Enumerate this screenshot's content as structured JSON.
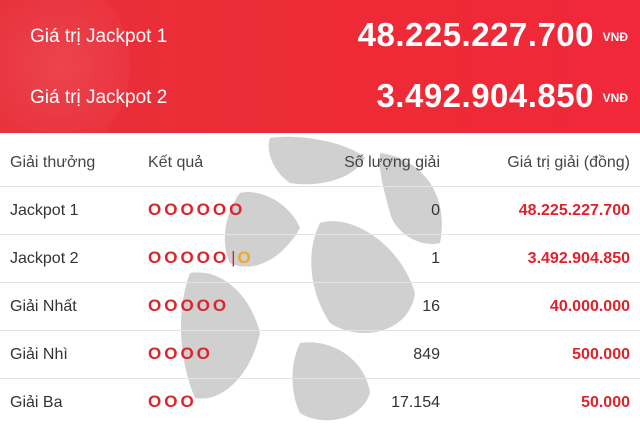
{
  "header": {
    "jackpot1_label": "Giá trị Jackpot 1",
    "jackpot1_value": "48.225.227.700",
    "jackpot2_label": "Giá trị Jackpot 2",
    "jackpot2_value": "3.492.904.850",
    "unit": "VNĐ"
  },
  "table": {
    "columns": {
      "prize": "Giải thưởng",
      "result": "Kết quả",
      "count": "Số lượng giải",
      "value": "Giá trị giải (đồng)"
    },
    "rows": [
      {
        "prize": "Jackpot 1",
        "result": "OOOOOO",
        "count": "0",
        "value": "48.225.227.700"
      },
      {
        "prize": "Jackpot 2",
        "result": "OOOOO",
        "separator": "|",
        "special": "O",
        "count": "1",
        "value": "3.492.904.850"
      },
      {
        "prize": "Giải Nhất",
        "result": "OOOOO",
        "count": "16",
        "value": "40.000.000"
      },
      {
        "prize": "Giải Nhì",
        "result": "OOOO",
        "count": "849",
        "value": "500.000"
      },
      {
        "prize": "Giải Ba",
        "result": "OOO",
        "count": "17.154",
        "value": "50.000"
      }
    ]
  },
  "colors": {
    "header_red": "#ee2a36",
    "value_red": "#e0222d",
    "special_ball": "#f5a623"
  }
}
